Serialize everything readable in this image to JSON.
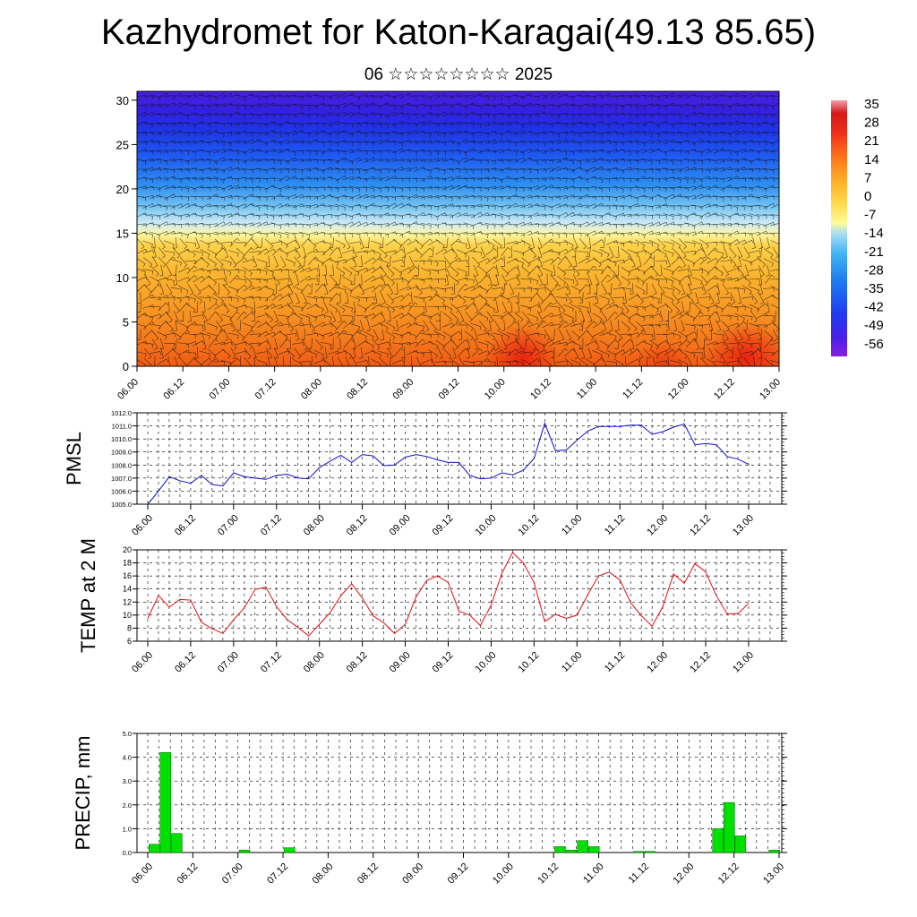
{
  "header": {
    "title": "Kazhydromet for Katon-Karagai(49.13 85.65)",
    "subtitle": "06 ☆☆☆☆☆☆☆☆ 2025"
  },
  "colors": {
    "pmsl_line": "#1010d0",
    "temp_line": "#e01010",
    "precip_bar": "#00e000",
    "precip_bar_stroke": "#006600",
    "grid": "#000000"
  },
  "chart_data": [
    {
      "type": "heatmap",
      "title": "",
      "x_tick_labels": [
        "06.00",
        "06.12",
        "07.00",
        "07.12",
        "08.00",
        "08.12",
        "09.00",
        "09.12",
        "10.00",
        "10.12",
        "11.00",
        "11.12",
        "12.00",
        "12.12",
        "13.00"
      ],
      "y_ticks": [
        0,
        5,
        10,
        15,
        20,
        25,
        30
      ],
      "ylim": [
        0,
        31
      ],
      "colorbar_labels": [
        "35",
        "28",
        "21",
        "14",
        "7",
        "0",
        "-7",
        "-14",
        "-21",
        "-28",
        "-35",
        "-42",
        "-49",
        "-56"
      ],
      "colorbar_range": [
        -63,
        42
      ],
      "overlay": "wind barbs"
    },
    {
      "type": "line",
      "ylabel": "PMSL",
      "y_ticks": [
        "1005.0",
        "1006.0",
        "1007.0",
        "1008.0",
        "1009.0",
        "1010.0",
        "1011.0",
        "1012.0"
      ],
      "ylim": [
        1005,
        1012
      ],
      "x_tick_labels": [
        "06.00",
        "06.12",
        "07.00",
        "07.12",
        "08.00",
        "08.12",
        "09.00",
        "09.12",
        "10.00",
        "10.12",
        "11.00",
        "11.12",
        "12.00",
        "12.12",
        "13.00"
      ],
      "step_hours": 3,
      "values": [
        1005.0,
        1006.0,
        1007.1,
        1006.8,
        1006.6,
        1007.2,
        1006.5,
        1006.4,
        1007.4,
        1007.1,
        1007.0,
        1006.9,
        1007.2,
        1007.3,
        1007.0,
        1006.95,
        1007.8,
        1008.3,
        1008.75,
        1008.2,
        1008.8,
        1008.7,
        1007.95,
        1008.0,
        1008.6,
        1008.8,
        1008.65,
        1008.4,
        1008.2,
        1008.2,
        1007.2,
        1006.95,
        1007.0,
        1007.4,
        1007.25,
        1007.6,
        1008.5,
        1011.2,
        1009.1,
        1009.15,
        1009.9,
        1010.6,
        1010.95,
        1010.95,
        1010.95,
        1011.05,
        1011.05,
        1010.35,
        1010.55,
        1010.9,
        1011.15,
        1009.55,
        1009.65,
        1009.55,
        1008.65,
        1008.45,
        1008.05
      ]
    },
    {
      "type": "line",
      "ylabel": "TEMP at 2 M",
      "y_ticks": [
        "6",
        "8",
        "10",
        "12",
        "14",
        "16",
        "18",
        "20"
      ],
      "ylim": [
        6,
        20
      ],
      "x_tick_labels": [
        "06.00",
        "06.12",
        "07.00",
        "07.12",
        "08.00",
        "08.12",
        "09.00",
        "09.12",
        "10.00",
        "10.12",
        "11.00",
        "11.12",
        "12.00",
        "12.12",
        "13.00"
      ],
      "step_hours": 3,
      "values": [
        9.5,
        13.0,
        11.2,
        12.4,
        12.3,
        8.9,
        7.9,
        7.2,
        9.3,
        11.1,
        13.9,
        14.3,
        11.3,
        9.3,
        8.1,
        6.8,
        8.6,
        10.4,
        13.0,
        14.8,
        12.6,
        9.9,
        8.8,
        7.2,
        8.6,
        12.8,
        15.3,
        16.0,
        15.0,
        10.6,
        10.0,
        8.4,
        11.5,
        16.4,
        19.6,
        18.0,
        15.0,
        9.0,
        10.1,
        9.5,
        10.0,
        13.1,
        16.0,
        16.6,
        15.4,
        11.9,
        9.9,
        8.3,
        11.3,
        16.3,
        14.9,
        17.9,
        16.6,
        12.9,
        10.2,
        10.2,
        11.8
      ]
    },
    {
      "type": "bar",
      "ylabel": "PRECIP, mm",
      "y_ticks": [
        "0.0",
        "1.0",
        "2.0",
        "3.0",
        "4.0",
        "5.0"
      ],
      "ylim": [
        0,
        5
      ],
      "x_tick_labels": [
        "06.00",
        "06.12",
        "07.00",
        "07.12",
        "08.00",
        "08.12",
        "09.00",
        "09.12",
        "10.00",
        "10.12",
        "11.00",
        "11.12",
        "12.00",
        "12.12",
        "13.00"
      ],
      "step_hours": 3,
      "values": [
        0.35,
        4.2,
        0.8,
        0,
        0,
        0,
        0,
        0,
        0.1,
        0,
        0,
        0,
        0.2,
        0,
        0,
        0,
        0,
        0,
        0,
        0,
        0,
        0,
        0,
        0,
        0,
        0,
        0,
        0,
        0,
        0,
        0,
        0,
        0,
        0,
        0,
        0,
        0.25,
        0.1,
        0.5,
        0.25,
        0,
        0,
        0,
        0.05,
        0.05,
        0,
        0,
        0,
        0,
        0,
        1.0,
        2.1,
        0.7,
        0,
        0,
        0.1,
        0
      ]
    }
  ]
}
